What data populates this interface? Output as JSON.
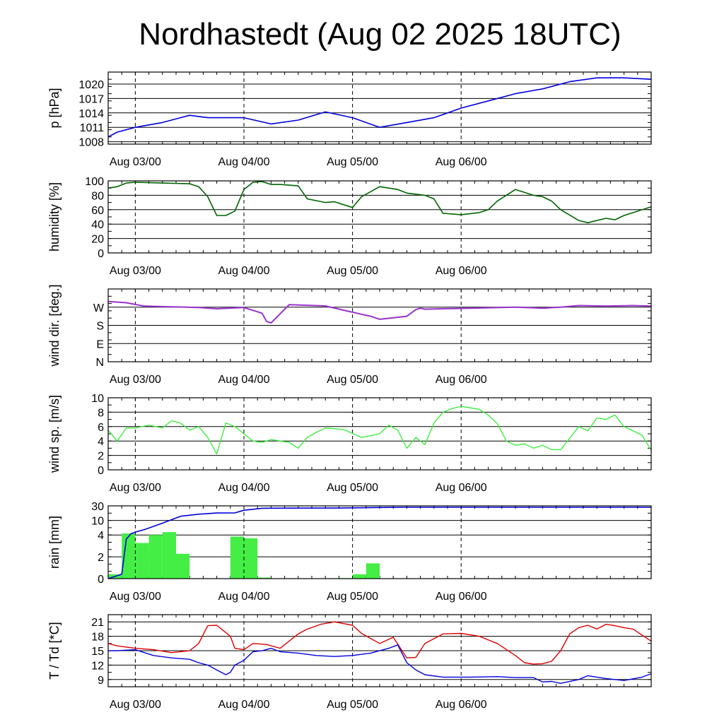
{
  "title": "Nordhastedt (Aug 02 2025 18UTC)",
  "x_tick_labels": [
    "Aug 03/00",
    "Aug 04/00",
    "Aug 05/00",
    "Aug 06/00"
  ],
  "colors": {
    "pressure": "#0000dd",
    "humidity": "#006400",
    "wind_dir": "#9932cc",
    "wind_speed": "#33ee33",
    "rain_bars": "#44ee44",
    "rain_cumulative": "#0000dd",
    "temperature": "#dd0000",
    "dewpoint": "#0000dd"
  },
  "chart_data": [
    {
      "type": "line",
      "ylabel": "p [hPa]",
      "x_unit": "hours since 2025-08-02 18UTC",
      "ylim": [
        1007.5,
        1022.5
      ],
      "yticks": [
        1008,
        1011,
        1014,
        1017,
        1020
      ],
      "ytick_labels": [
        "1008",
        "1011",
        "1014",
        "1017",
        "1020"
      ],
      "series": [
        {
          "x": [
            0,
            2,
            6,
            12,
            18,
            22,
            30,
            36,
            42,
            48,
            54,
            60,
            66,
            72,
            78,
            84,
            90,
            96,
            102,
            108,
            114,
            120
          ],
          "values": [
            1009,
            1010,
            1011,
            1012,
            1013.5,
            1013,
            1013,
            1011.7,
            1012.5,
            1014.2,
            1013,
            1011,
            1012,
            1013,
            1015,
            1016.5,
            1018,
            1019,
            1020.5,
            1021.3,
            1021.3,
            1021
          ]
        }
      ]
    },
    {
      "type": "line",
      "ylabel": "humidity [%]",
      "x_unit": "hours since 2025-08-02 18UTC",
      "ylim": [
        0,
        100
      ],
      "yticks": [
        0,
        20,
        40,
        60,
        80,
        100
      ],
      "ytick_labels": [
        "0",
        "20",
        "40",
        "60",
        "80",
        "100"
      ],
      "series": [
        {
          "x": [
            0,
            2,
            4,
            6,
            12,
            18,
            20,
            22,
            24,
            26,
            28,
            30,
            32,
            34,
            36,
            38,
            42,
            44,
            48,
            50,
            54,
            56,
            60,
            64,
            66,
            70,
            72,
            74,
            78,
            82,
            84,
            86,
            90,
            94,
            96,
            98,
            100,
            104,
            106,
            110,
            112,
            114,
            120
          ],
          "values": [
            90,
            92,
            97,
            98,
            97,
            96,
            92,
            78,
            52,
            52,
            58,
            88,
            98,
            99,
            95,
            95,
            93,
            75,
            70,
            71,
            63,
            78,
            92,
            88,
            83,
            80,
            75,
            55,
            53,
            56,
            60,
            72,
            88,
            80,
            78,
            72,
            60,
            45,
            42,
            48,
            46,
            52,
            64
          ]
        }
      ]
    },
    {
      "type": "line",
      "ylabel": "wind dir. [deg.]",
      "x_unit": "hours since 2025-08-02 18UTC",
      "ylim": [
        0,
        360
      ],
      "yticks": [
        0,
        90,
        180,
        270
      ],
      "ytick_labels": [
        "N",
        "E",
        "S",
        "W"
      ],
      "series": [
        {
          "x": [
            0,
            4,
            8,
            14,
            20,
            24,
            30,
            34,
            35,
            36,
            40,
            48,
            52,
            56,
            58,
            60,
            64,
            66,
            68,
            69,
            70,
            74,
            80,
            90,
            96,
            100,
            104,
            110,
            116,
            120
          ],
          "values": [
            298,
            292,
            275,
            272,
            268,
            262,
            268,
            240,
            200,
            192,
            282,
            276,
            255,
            235,
            225,
            210,
            220,
            225,
            258,
            265,
            260,
            262,
            265,
            270,
            265,
            270,
            278,
            275,
            278,
            275
          ]
        }
      ]
    },
    {
      "type": "line",
      "ylabel": "wind sp. [m/s]",
      "x_unit": "hours since 2025-08-02 18UTC",
      "ylim": [
        0,
        10
      ],
      "yticks": [
        0,
        2,
        4,
        6,
        8,
        10
      ],
      "ytick_labels": [
        "0",
        "2",
        "4",
        "6",
        "8",
        "10"
      ],
      "series": [
        {
          "x": [
            0,
            2,
            4,
            6,
            9,
            12,
            14,
            16,
            18,
            20,
            22,
            24,
            26,
            28,
            30,
            32,
            34,
            36,
            40,
            42,
            44,
            46,
            48,
            52,
            56,
            60,
            62,
            64,
            66,
            68,
            70,
            72,
            74,
            76,
            78,
            82,
            84,
            86,
            88,
            90,
            92,
            94,
            96,
            98,
            100,
            104,
            106,
            108,
            110,
            112,
            114,
            118,
            120
          ],
          "values": [
            5.5,
            4.0,
            5.8,
            5.8,
            6.2,
            5.8,
            6.8,
            6.5,
            5.5,
            6.0,
            4.5,
            2.2,
            6.5,
            6.0,
            5.0,
            4.0,
            3.8,
            4.2,
            3.8,
            3.0,
            4.5,
            5.2,
            5.8,
            5.6,
            4.5,
            5.0,
            6.2,
            5.5,
            3.0,
            4.5,
            3.5,
            6.5,
            8.0,
            8.5,
            8.8,
            8.4,
            7.6,
            6.4,
            4.0,
            3.4,
            3.6,
            3.0,
            3.4,
            2.8,
            2.8,
            6.0,
            5.4,
            7.2,
            7.0,
            7.6,
            6.0,
            4.8,
            2.7
          ]
        }
      ]
    },
    {
      "type": "bar",
      "ylabel": "rain [mm]",
      "x_unit": "hours since 2025-08-02 18UTC",
      "ylim": [
        0,
        30
      ],
      "yticks": [
        0,
        2,
        4,
        10,
        30
      ],
      "ytick_labels": [
        "0",
        "2",
        "4",
        "10",
        "30"
      ],
      "bin_hours": 3,
      "bars": {
        "x": [
          3,
          6,
          9,
          12,
          15,
          18,
          21,
          24,
          27,
          30,
          33,
          36,
          39,
          42,
          45,
          48,
          51,
          54,
          57,
          60,
          63,
          66,
          69,
          72,
          75,
          78,
          81,
          84,
          87,
          90,
          93,
          96,
          99,
          102,
          105,
          108,
          111,
          114,
          117
        ],
        "values": [
          0.4,
          4.4,
          3.1,
          4.0,
          4.8,
          2.2,
          0,
          0,
          0,
          3.8,
          3.6,
          0.1,
          0,
          0,
          0,
          0,
          0,
          0.05,
          0.4,
          1.4,
          0,
          0,
          0,
          0,
          0,
          0,
          0.02,
          0.02,
          0,
          0,
          0,
          0,
          0,
          0,
          0,
          0,
          0,
          0,
          0
        ]
      },
      "series": [
        {
          "x": [
            0,
            3,
            4,
            5,
            6,
            8,
            12,
            16,
            20,
            24,
            28,
            30,
            34,
            40,
            50,
            60,
            65,
            80,
            100,
            120
          ],
          "values": [
            0,
            0.4,
            3.5,
            4.3,
            4.8,
            5.6,
            8.4,
            13.7,
            16,
            17.5,
            17.6,
            21.5,
            25,
            25.3,
            25.4,
            26.5,
            27,
            27,
            27,
            27
          ]
        }
      ]
    },
    {
      "type": "line",
      "ylabel": "T / Td [*C]",
      "x_unit": "hours since 2025-08-02 18UTC",
      "ylim": [
        7.5,
        22.5
      ],
      "yticks": [
        9,
        12,
        15,
        18,
        21
      ],
      "ytick_labels": [
        "9",
        "12",
        "15",
        "18",
        "21"
      ],
      "series": [
        {
          "x": [
            0,
            2,
            6,
            10,
            14,
            18,
            20,
            22,
            24,
            27,
            28,
            30,
            32,
            35,
            38,
            42,
            44,
            47,
            50,
            54,
            56,
            60,
            63,
            66,
            68,
            70,
            74,
            78,
            82,
            86,
            90,
            92,
            94,
            96,
            98,
            100,
            102,
            104,
            106,
            108,
            110,
            112,
            114,
            116,
            120
          ],
          "values": [
            16.5,
            16.0,
            15.5,
            15.2,
            14.6,
            15.0,
            16.5,
            20.2,
            20.3,
            18.0,
            15.5,
            15.2,
            16.5,
            16.3,
            15.5,
            18.5,
            19.5,
            20.5,
            21.0,
            20.3,
            18.6,
            16.5,
            17.8,
            13.5,
            13.6,
            16.5,
            18.5,
            18.6,
            18.0,
            16.5,
            14.0,
            12.5,
            12.2,
            12.3,
            12.8,
            15.0,
            18.5,
            19.8,
            20.3,
            19.5,
            20.5,
            20.2,
            19.8,
            19.5,
            17.0
          ]
        },
        {
          "x": [
            0,
            2,
            6,
            10,
            14,
            18,
            20,
            22,
            24,
            26,
            27,
            28,
            30,
            32,
            34,
            36,
            38,
            42,
            46,
            50,
            54,
            58,
            62,
            64,
            66,
            68,
            70,
            74,
            80,
            86,
            90,
            94,
            96,
            98,
            100,
            104,
            106,
            110,
            114,
            118,
            120
          ],
          "values": [
            15.0,
            15.0,
            15.2,
            14.0,
            13.5,
            13.2,
            12.5,
            12.0,
            11.0,
            10.0,
            10.5,
            12.0,
            13.0,
            14.8,
            15.0,
            15.5,
            14.8,
            14.5,
            14.0,
            13.8,
            14.0,
            14.5,
            15.5,
            16.2,
            12.5,
            11.0,
            10.0,
            9.5,
            9.5,
            9.6,
            9.4,
            9.4,
            8.5,
            8.6,
            8.2,
            9.0,
            9.8,
            9.2,
            8.8,
            9.5,
            10.2
          ]
        }
      ]
    }
  ]
}
